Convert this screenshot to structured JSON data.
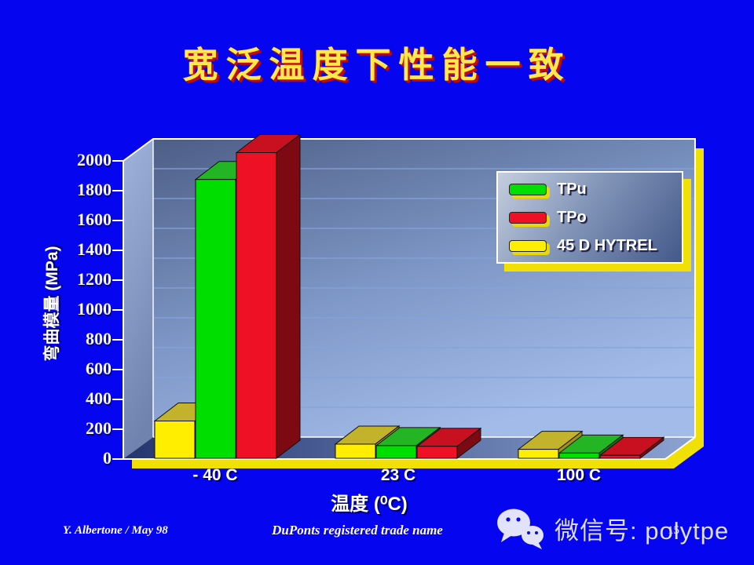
{
  "slide": {
    "title": "宽泛温度下性能一致",
    "footer": {
      "author": "Y. Albertone / May 98",
      "note": "DuPonts registered trade name",
      "page_number": "15"
    },
    "watermark": {
      "label": "微信号: polytpe"
    },
    "colors": {
      "background": "#0505F0",
      "title_fill": "#FFE94A",
      "title_shadow": "#C50A00",
      "shadow_yellow": "#F0E005"
    }
  },
  "chart_data": {
    "type": "bar",
    "projection": "3d",
    "title": "",
    "xlabel": "温度 (⁰C)",
    "ylabel": "弯曲模量 (MPa)",
    "categories": [
      "- 40  C",
      "23 C",
      "100 C"
    ],
    "series": [
      {
        "name": "TPu",
        "color": "#00DE00",
        "top_color": "#23B523",
        "side_color": "#0B7A0B",
        "values": [
          1870,
          85,
          35
        ]
      },
      {
        "name": "TPo",
        "color": "#EE1126",
        "top_color": "#C81020",
        "side_color": "#7D0A12",
        "values": [
          2050,
          80,
          20
        ]
      },
      {
        "name": "45 D HYTREL",
        "color": "#FFEE00",
        "top_color": "#C2B22C",
        "side_color": "#A0920E",
        "values": [
          250,
          95,
          60
        ]
      }
    ],
    "bar_order": [
      "45 D HYTREL",
      "TPu",
      "TPo"
    ],
    "ylim": [
      0,
      2000
    ],
    "ytick_step": 200,
    "ytick_labels": [
      "0",
      "200",
      "400",
      "600",
      "800",
      "1000",
      "1200",
      "1400",
      "1600",
      "1800",
      "2000"
    ],
    "grid": true,
    "legend_position": "top-right"
  }
}
